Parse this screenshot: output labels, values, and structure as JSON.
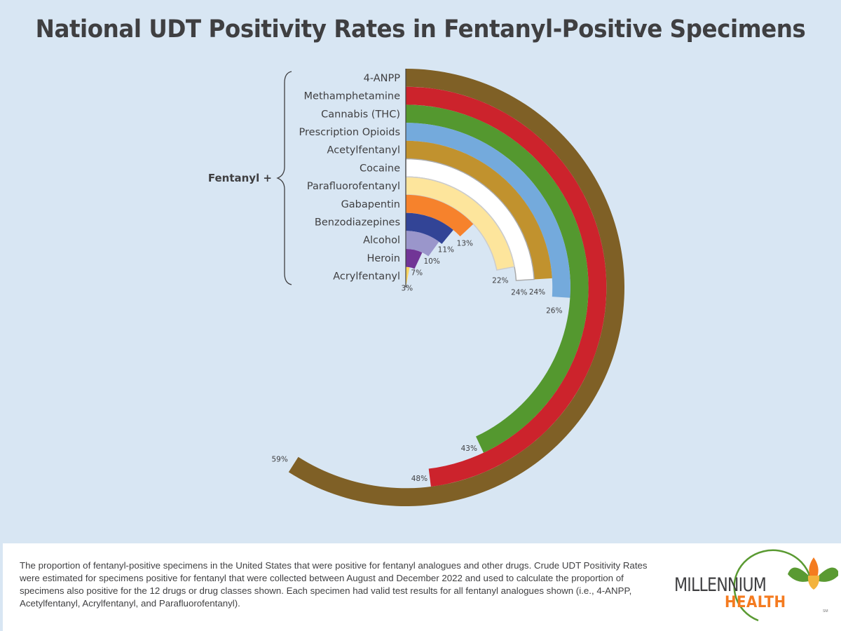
{
  "page": {
    "title": "National UDT Positivity Rates in Fentanyl-Positive Specimens",
    "footnote": "The proportion of fentanyl-positive specimens in the United States that were positive for fentanyl analogues and other drugs. Crude UDT Positivity Rates were estimated for specimens positive for fentanyl that were collected between August and December 2022 and used to calculate the proportion of specimens also positive for the 12 drugs or drug classes shown. Each specimen had valid test results for all fentanyl analogues shown (i.e., 4-ANPP, Acetylfentanyl, Acrylfentanyl, and Parafluorofentanyl).",
    "logo": {
      "line1": "MILLENNIUM",
      "line2": "HEALTH",
      "mark": "SM",
      "colors": {
        "green": "#5a9a32",
        "orange": "#f47b20",
        "yellow": "#f3b33d",
        "text": "#3f3f41"
      }
    },
    "background": "#d8e6f3"
  },
  "chart_data": {
    "type": "radial-bar",
    "title": "National UDT Positivity Rates in Fentanyl-Positive Specimens",
    "group_label": "Fentanyl +",
    "unit": "%",
    "full_circle_value": 100,
    "start": "top",
    "direction": "clockwise",
    "categories": [
      "4-ANPP",
      "Methamphetamine",
      "Cannabis (THC)",
      "Prescription Opioids",
      "Acetylfentanyl",
      "Cocaine",
      "Parafluorofentanyl",
      "Gabapentin",
      "Benzodiazepines",
      "Alcohol",
      "Heroin",
      "Acrylfentanyl"
    ],
    "values": [
      59,
      48,
      43,
      26,
      24,
      24,
      22,
      13,
      11,
      10,
      7,
      3
    ],
    "value_labels": [
      "59%",
      "48%",
      "43%",
      "26%",
      "24%",
      "24%",
      "22%",
      "13%",
      "11%",
      "10%",
      "7%",
      "3%"
    ],
    "colors": [
      "#7f6026",
      "#cc232c",
      "#54982f",
      "#74aadc",
      "#c1922e",
      "#ffffff",
      "#fde59c",
      "#f6822c",
      "#324496",
      "#9a96cb",
      "#713596",
      "#fdd65e"
    ],
    "outline": [
      null,
      null,
      null,
      null,
      null,
      "#aaaaaa",
      "#cccccc",
      null,
      null,
      null,
      null,
      null
    ]
  }
}
